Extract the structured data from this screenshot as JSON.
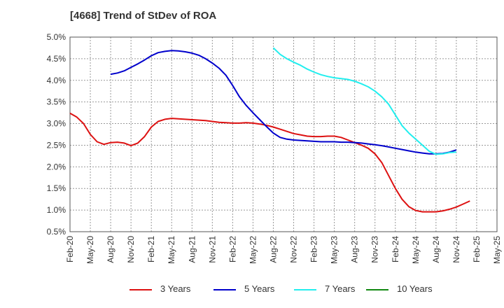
{
  "chart_data": {
    "type": "line",
    "title": "[4668]  Trend of StDev of ROA",
    "xlabel": "",
    "ylabel": "",
    "ylim": [
      0.5,
      5.0
    ],
    "yticks": [
      "0.5%",
      "1.0%",
      "1.5%",
      "2.0%",
      "2.5%",
      "3.0%",
      "3.5%",
      "4.0%",
      "4.5%",
      "5.0%"
    ],
    "xticks": [
      "Feb-20",
      "May-20",
      "Aug-20",
      "Nov-20",
      "Feb-21",
      "May-21",
      "Aug-21",
      "Nov-21",
      "Feb-22",
      "May-22",
      "Aug-22",
      "Nov-22",
      "Feb-23",
      "May-23",
      "Aug-23",
      "Nov-23",
      "Feb-24",
      "May-24",
      "Aug-24",
      "Nov-24",
      "Feb-25",
      "May-25"
    ],
    "grid": true,
    "legend_position": "bottom",
    "series": [
      {
        "name": "3 Years",
        "color": "#dd1111",
        "points": [
          [
            0,
            3.24
          ],
          [
            1,
            3.15
          ],
          [
            2,
            3.0
          ],
          [
            3,
            2.75
          ],
          [
            4,
            2.58
          ],
          [
            5,
            2.52
          ],
          [
            6,
            2.56
          ],
          [
            7,
            2.57
          ],
          [
            8,
            2.55
          ],
          [
            9,
            2.49
          ],
          [
            10,
            2.55
          ],
          [
            11,
            2.7
          ],
          [
            12,
            2.92
          ],
          [
            13,
            3.05
          ],
          [
            14,
            3.1
          ],
          [
            15,
            3.12
          ],
          [
            16,
            3.11
          ],
          [
            17,
            3.1
          ],
          [
            18,
            3.09
          ],
          [
            19,
            3.08
          ],
          [
            20,
            3.07
          ],
          [
            21,
            3.05
          ],
          [
            22,
            3.03
          ],
          [
            23,
            3.02
          ],
          [
            24,
            3.01
          ],
          [
            25,
            3.01
          ],
          [
            26,
            3.02
          ],
          [
            27,
            3.01
          ],
          [
            28,
            2.99
          ],
          [
            29,
            2.96
          ],
          [
            30,
            2.92
          ],
          [
            31,
            2.87
          ],
          [
            32,
            2.82
          ],
          [
            33,
            2.77
          ],
          [
            34,
            2.74
          ],
          [
            35,
            2.71
          ],
          [
            36,
            2.7
          ],
          [
            37,
            2.7
          ],
          [
            38,
            2.71
          ],
          [
            39,
            2.71
          ],
          [
            40,
            2.68
          ],
          [
            41,
            2.62
          ],
          [
            42,
            2.56
          ],
          [
            43,
            2.5
          ],
          [
            44,
            2.43
          ],
          [
            45,
            2.3
          ],
          [
            46,
            2.1
          ],
          [
            47,
            1.8
          ],
          [
            48,
            1.5
          ],
          [
            49,
            1.25
          ],
          [
            50,
            1.08
          ],
          [
            51,
            0.99
          ],
          [
            52,
            0.96
          ],
          [
            53,
            0.96
          ],
          [
            54,
            0.96
          ],
          [
            55,
            0.98
          ],
          [
            56,
            1.02
          ],
          [
            57,
            1.07
          ],
          [
            58,
            1.14
          ],
          [
            59,
            1.21
          ]
        ]
      },
      {
        "name": "5 Years",
        "color": "#0000cc",
        "points": [
          [
            6,
            4.14
          ],
          [
            7,
            4.17
          ],
          [
            8,
            4.22
          ],
          [
            9,
            4.3
          ],
          [
            10,
            4.38
          ],
          [
            11,
            4.47
          ],
          [
            12,
            4.57
          ],
          [
            13,
            4.64
          ],
          [
            14,
            4.67
          ],
          [
            15,
            4.69
          ],
          [
            16,
            4.68
          ],
          [
            17,
            4.66
          ],
          [
            18,
            4.63
          ],
          [
            19,
            4.58
          ],
          [
            20,
            4.5
          ],
          [
            21,
            4.4
          ],
          [
            22,
            4.28
          ],
          [
            23,
            4.12
          ],
          [
            24,
            3.88
          ],
          [
            25,
            3.62
          ],
          [
            26,
            3.42
          ],
          [
            27,
            3.25
          ],
          [
            28,
            3.09
          ],
          [
            29,
            2.93
          ],
          [
            30,
            2.78
          ],
          [
            31,
            2.68
          ],
          [
            32,
            2.64
          ],
          [
            33,
            2.62
          ],
          [
            34,
            2.61
          ],
          [
            35,
            2.6
          ],
          [
            36,
            2.59
          ],
          [
            37,
            2.58
          ],
          [
            38,
            2.58
          ],
          [
            39,
            2.58
          ],
          [
            40,
            2.57
          ],
          [
            41,
            2.57
          ],
          [
            42,
            2.56
          ],
          [
            43,
            2.55
          ],
          [
            44,
            2.53
          ],
          [
            45,
            2.51
          ],
          [
            46,
            2.49
          ],
          [
            47,
            2.46
          ],
          [
            48,
            2.43
          ],
          [
            49,
            2.4
          ],
          [
            50,
            2.37
          ],
          [
            51,
            2.34
          ],
          [
            52,
            2.32
          ],
          [
            53,
            2.3
          ],
          [
            54,
            2.3
          ],
          [
            55,
            2.31
          ],
          [
            56,
            2.34
          ],
          [
            57,
            2.39
          ]
        ]
      },
      {
        "name": "7 Years",
        "color": "#22eeee",
        "points": [
          [
            30,
            4.75
          ],
          [
            31,
            4.6
          ],
          [
            32,
            4.5
          ],
          [
            33,
            4.42
          ],
          [
            34,
            4.35
          ],
          [
            35,
            4.26
          ],
          [
            36,
            4.19
          ],
          [
            37,
            4.13
          ],
          [
            38,
            4.09
          ],
          [
            39,
            4.06
          ],
          [
            40,
            4.04
          ],
          [
            41,
            4.02
          ],
          [
            42,
            3.98
          ],
          [
            43,
            3.92
          ],
          [
            44,
            3.85
          ],
          [
            45,
            3.75
          ],
          [
            46,
            3.62
          ],
          [
            47,
            3.45
          ],
          [
            48,
            3.2
          ],
          [
            49,
            2.95
          ],
          [
            50,
            2.78
          ],
          [
            51,
            2.64
          ],
          [
            52,
            2.5
          ],
          [
            53,
            2.36
          ],
          [
            54,
            2.29
          ],
          [
            55,
            2.3
          ],
          [
            56,
            2.33
          ],
          [
            57,
            2.34
          ]
        ]
      },
      {
        "name": "10 Years",
        "color": "#118811",
        "points": []
      }
    ]
  }
}
